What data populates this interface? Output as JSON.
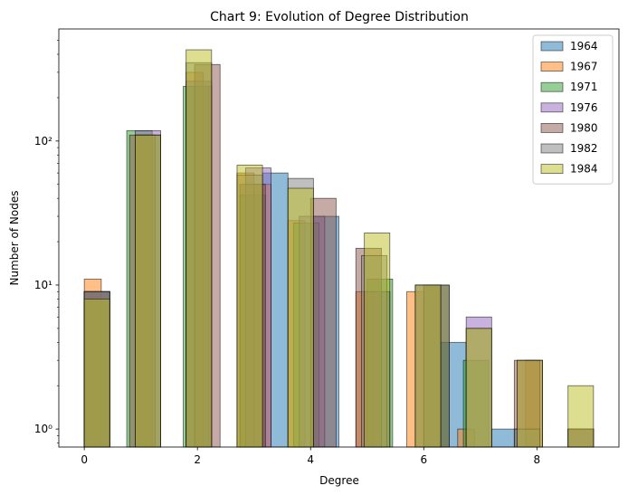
{
  "chart_data": {
    "type": "bar",
    "title": "Chart 9: Evolution of Degree Distribution",
    "xlabel": "Degree",
    "ylabel": "Number of Nodes",
    "yscale": "log",
    "xlim": [
      -0.45,
      9.45
    ],
    "ylim": [
      0.75,
      600
    ],
    "grid": false,
    "legend_position": "top-right",
    "x_ticks": [
      0,
      2,
      4,
      6,
      8
    ],
    "x_tick_labels": [
      "0",
      "2",
      "4",
      "6",
      "8"
    ],
    "y_ticks": [
      1,
      10,
      100
    ],
    "y_tick_labels": [
      "10⁰",
      "10¹",
      "10²"
    ],
    "series": [
      {
        "name": "1964",
        "color": "#1f77b4",
        "bins": [
          [
            0.0,
            0.45,
            9
          ],
          [
            0.9,
            1.35,
            110
          ],
          [
            1.8,
            2.25,
            240
          ],
          [
            3.15,
            3.6,
            60
          ],
          [
            4.05,
            4.5,
            30
          ],
          [
            4.95,
            5.4,
            9
          ],
          [
            6.3,
            6.75,
            4
          ],
          [
            7.2,
            7.65,
            1
          ]
        ]
      },
      {
        "name": "1967",
        "color": "#ff7f0e",
        "bins": [
          [
            0.0,
            0.3,
            11
          ],
          [
            0.9,
            1.2,
            110
          ],
          [
            1.8,
            2.1,
            300
          ],
          [
            2.7,
            3.0,
            60
          ],
          [
            3.0,
            3.3,
            50
          ],
          [
            3.6,
            3.9,
            28
          ],
          [
            4.8,
            5.1,
            9
          ],
          [
            5.7,
            6.0,
            9
          ],
          [
            6.6,
            6.9,
            1
          ],
          [
            7.8,
            8.1,
            3
          ]
        ]
      },
      {
        "name": "1971",
        "color": "#2ca02c",
        "bins": [
          [
            0.0,
            0.45,
            9
          ],
          [
            0.75,
            1.2,
            118
          ],
          [
            1.75,
            2.2,
            240
          ],
          [
            2.75,
            3.2,
            42
          ],
          [
            3.7,
            4.15,
            27
          ],
          [
            5.0,
            5.45,
            11
          ],
          [
            6.0,
            6.45,
            10
          ],
          [
            6.7,
            7.15,
            3
          ]
        ]
      },
      {
        "name": "1976",
        "color": "#9467bd",
        "bins": [
          [
            0.0,
            0.45,
            9
          ],
          [
            0.9,
            1.35,
            118
          ],
          [
            1.8,
            2.25,
            260
          ],
          [
            2.85,
            3.3,
            65
          ],
          [
            3.8,
            4.25,
            30
          ],
          [
            4.95,
            5.4,
            9
          ],
          [
            5.85,
            6.3,
            10
          ],
          [
            6.75,
            7.2,
            6
          ],
          [
            7.65,
            8.1,
            3
          ],
          [
            8.55,
            9.0,
            1
          ]
        ]
      },
      {
        "name": "1980",
        "color": "#8c564b",
        "bins": [
          [
            0.0,
            0.45,
            9
          ],
          [
            0.8,
            1.25,
            110
          ],
          [
            1.95,
            2.4,
            340
          ],
          [
            2.75,
            3.2,
            50
          ],
          [
            4.0,
            4.45,
            40
          ],
          [
            4.8,
            5.25,
            18
          ],
          [
            6.0,
            6.45,
            10
          ],
          [
            7.6,
            8.05,
            3
          ],
          [
            8.55,
            9.0,
            1
          ]
        ]
      },
      {
        "name": "1982",
        "color": "#7f7f7f",
        "bins": [
          [
            0.0,
            0.45,
            9
          ],
          [
            0.9,
            1.35,
            110
          ],
          [
            1.8,
            2.25,
            350
          ],
          [
            2.7,
            3.15,
            58
          ],
          [
            3.6,
            4.05,
            55
          ],
          [
            4.9,
            5.35,
            16
          ],
          [
            5.85,
            6.3,
            10
          ],
          [
            6.75,
            7.2,
            5
          ],
          [
            7.6,
            8.05,
            1
          ],
          [
            8.55,
            9.0,
            1
          ]
        ]
      },
      {
        "name": "1984",
        "color": "#bcbd22",
        "bins": [
          [
            0.0,
            0.45,
            8
          ],
          [
            0.9,
            1.35,
            110
          ],
          [
            1.8,
            2.25,
            430
          ],
          [
            2.7,
            3.15,
            68
          ],
          [
            3.6,
            4.05,
            47
          ],
          [
            4.95,
            5.4,
            23
          ],
          [
            5.85,
            6.3,
            10
          ],
          [
            6.75,
            7.2,
            5
          ],
          [
            7.65,
            8.1,
            3
          ],
          [
            8.55,
            9.0,
            2
          ]
        ]
      }
    ]
  }
}
